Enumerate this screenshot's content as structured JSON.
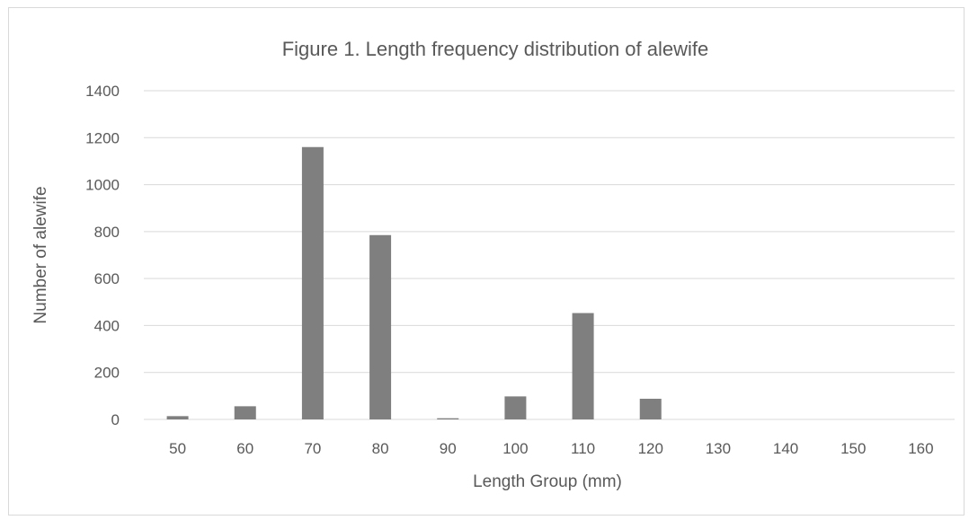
{
  "chart_data": {
    "type": "bar",
    "title": "Figure 1. Length frequency distribution of alewife",
    "xlabel": "Length Group (mm)",
    "ylabel": "Number of alewife",
    "categories": [
      "50",
      "60",
      "70",
      "80",
      "90",
      "100",
      "110",
      "120",
      "130",
      "140",
      "150",
      "160"
    ],
    "series": [
      {
        "values": [
          14,
          56,
          1160,
          785,
          5,
          98,
          453,
          88,
          0,
          0,
          0,
          0
        ]
      }
    ],
    "ylim": [
      0,
      1400
    ],
    "yticks": [
      "0",
      "200",
      "400",
      "600",
      "800",
      "1000",
      "1200",
      "1400"
    ],
    "grid": true,
    "legend": "none",
    "colors": {
      "bar": "#7f7f7f",
      "grid": "#d9d9d9",
      "text": "#595959"
    }
  }
}
